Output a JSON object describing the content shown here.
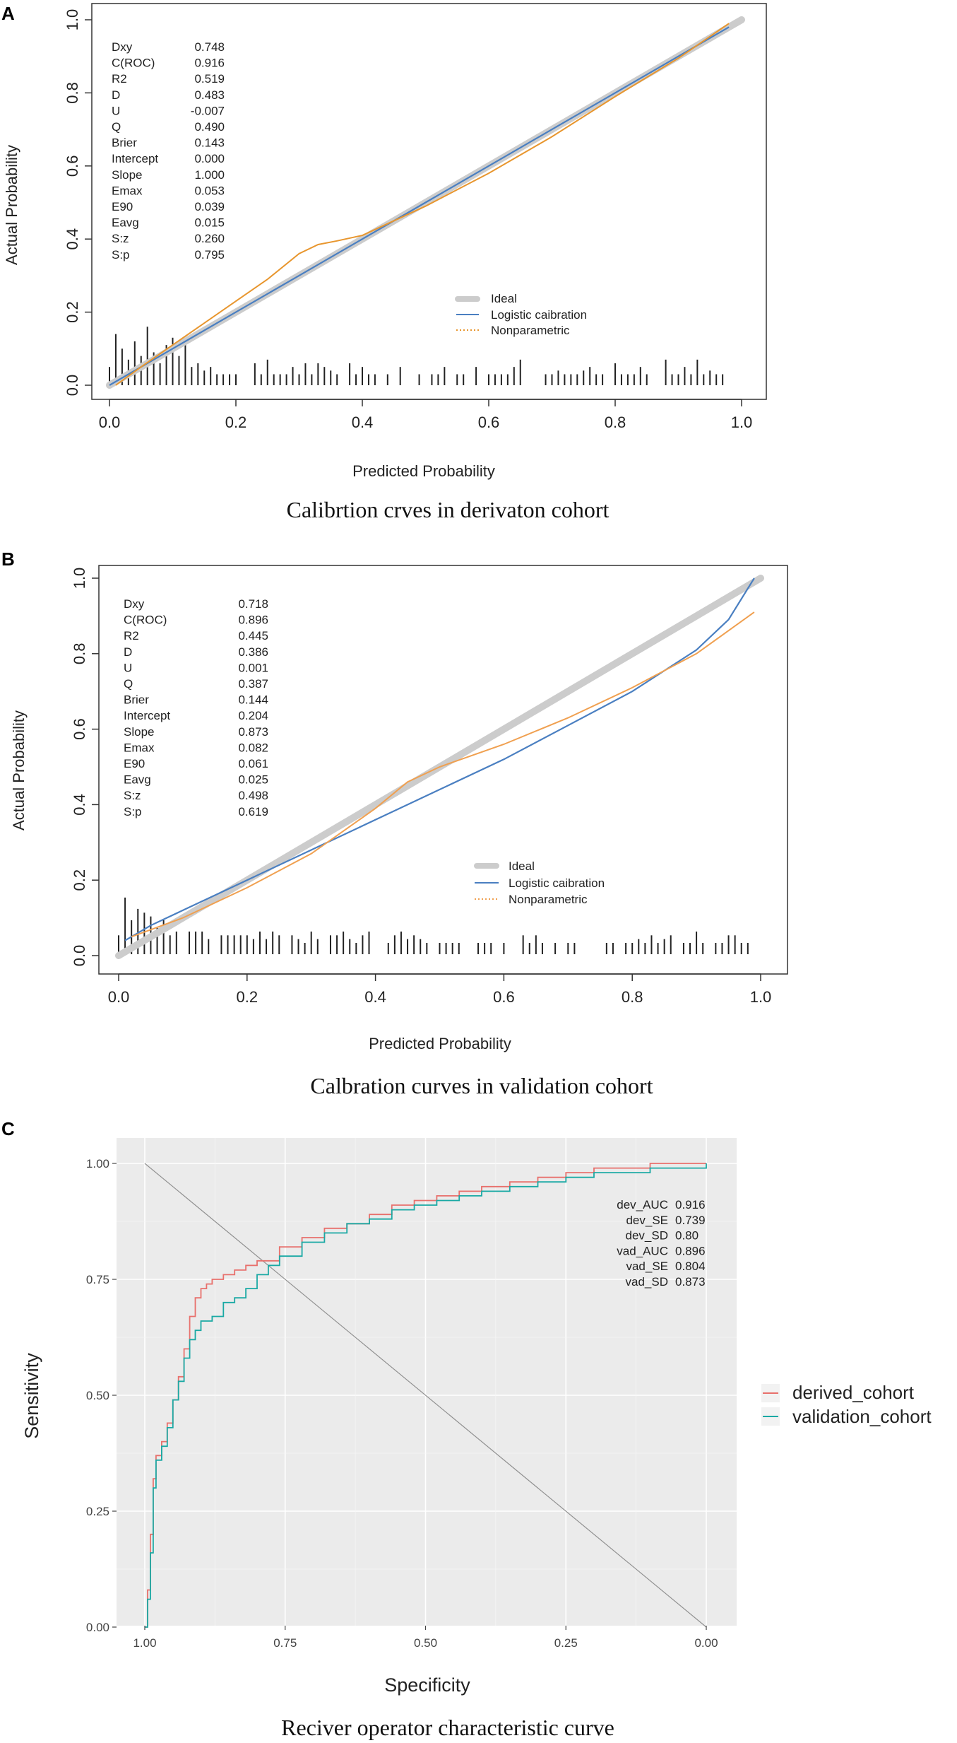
{
  "chart_data": [
    {
      "panel_label": "A",
      "type": "line",
      "caption": "Calibrtion crves in derivaton cohort",
      "xlabel": "Predicted Probability",
      "ylabel": "Actual Probability",
      "xlim": [
        0,
        1
      ],
      "ylim": [
        0,
        1
      ],
      "x_ticks": [
        "0.0",
        "0.2",
        "0.4",
        "0.6",
        "0.8",
        "1.0"
      ],
      "y_ticks": [
        "0.0",
        "0.2",
        "0.4",
        "0.6",
        "0.8",
        "1.0"
      ],
      "stats": [
        {
          "name": "Dxy",
          "value": "0.748"
        },
        {
          "name": "C(ROC)",
          "value": "0.916"
        },
        {
          "name": "R2",
          "value": "0.519"
        },
        {
          "name": "D",
          "value": "0.483"
        },
        {
          "name": "U",
          "value": "-0.007"
        },
        {
          "name": "Q",
          "value": "0.490"
        },
        {
          "name": "Brier",
          "value": "0.143"
        },
        {
          "name": "Intercept",
          "value": "0.000"
        },
        {
          "name": "Slope",
          "value": "1.000"
        },
        {
          "name": "Emax",
          "value": "0.053"
        },
        {
          "name": "E90",
          "value": "0.039"
        },
        {
          "name": "Eavg",
          "value": "0.015"
        },
        {
          "name": "S:z",
          "value": "0.260"
        },
        {
          "name": "S:p",
          "value": "0.795"
        }
      ],
      "legend": [
        "Ideal",
        "Logistic caibration",
        "Nonparametric"
      ],
      "series": [
        {
          "name": "Ideal",
          "color": "#cccccc",
          "x": [
            0,
            1
          ],
          "y": [
            0,
            1
          ]
        },
        {
          "name": "Logistic caibration",
          "color": "#4a7fc1",
          "x": [
            0,
            0.1,
            0.2,
            0.3,
            0.4,
            0.5,
            0.6,
            0.7,
            0.8,
            0.9,
            0.98
          ],
          "y": [
            0,
            0.1,
            0.2,
            0.3,
            0.4,
            0.5,
            0.6,
            0.7,
            0.8,
            0.9,
            0.98
          ]
        },
        {
          "name": "Nonparametric",
          "color": "#e8962e",
          "x": [
            0.01,
            0.05,
            0.1,
            0.15,
            0.2,
            0.25,
            0.3,
            0.33,
            0.36,
            0.4,
            0.5,
            0.6,
            0.7,
            0.8,
            0.9,
            0.98
          ],
          "y": [
            0.0,
            0.05,
            0.11,
            0.17,
            0.23,
            0.29,
            0.36,
            0.385,
            0.395,
            0.41,
            0.49,
            0.58,
            0.68,
            0.79,
            0.895,
            0.99
          ]
        }
      ],
      "rug_x": [
        0.0,
        0.01,
        0.02,
        0.03,
        0.04,
        0.05,
        0.06,
        0.07,
        0.08,
        0.09,
        0.1,
        0.11,
        0.12,
        0.13,
        0.14,
        0.15,
        0.16,
        0.17,
        0.18,
        0.19,
        0.2,
        0.23,
        0.24,
        0.25,
        0.26,
        0.27,
        0.28,
        0.29,
        0.3,
        0.31,
        0.32,
        0.33,
        0.34,
        0.35,
        0.36,
        0.38,
        0.39,
        0.4,
        0.41,
        0.42,
        0.44,
        0.46,
        0.49,
        0.51,
        0.52,
        0.53,
        0.55,
        0.56,
        0.58,
        0.6,
        0.61,
        0.62,
        0.63,
        0.64,
        0.65,
        0.69,
        0.7,
        0.71,
        0.72,
        0.73,
        0.74,
        0.75,
        0.76,
        0.77,
        0.78,
        0.8,
        0.81,
        0.82,
        0.83,
        0.84,
        0.85,
        0.88,
        0.89,
        0.9,
        0.91,
        0.92,
        0.93,
        0.94,
        0.95,
        0.96,
        0.97
      ],
      "rug_h": [
        0.05,
        0.14,
        0.1,
        0.07,
        0.12,
        0.08,
        0.16,
        0.09,
        0.06,
        0.11,
        0.13,
        0.08,
        0.12,
        0.05,
        0.06,
        0.04,
        0.05,
        0.03,
        0.03,
        0.03,
        0.03,
        0.06,
        0.03,
        0.07,
        0.03,
        0.03,
        0.03,
        0.05,
        0.03,
        0.06,
        0.03,
        0.06,
        0.05,
        0.04,
        0.03,
        0.06,
        0.03,
        0.05,
        0.03,
        0.03,
        0.03,
        0.05,
        0.03,
        0.03,
        0.03,
        0.05,
        0.03,
        0.03,
        0.05,
        0.03,
        0.03,
        0.03,
        0.03,
        0.05,
        0.07,
        0.03,
        0.03,
        0.04,
        0.03,
        0.03,
        0.03,
        0.04,
        0.05,
        0.03,
        0.03,
        0.06,
        0.03,
        0.03,
        0.03,
        0.05,
        0.03,
        0.07,
        0.03,
        0.03,
        0.05,
        0.03,
        0.07,
        0.03,
        0.04,
        0.03,
        0.03
      ]
    },
    {
      "panel_label": "B",
      "type": "line",
      "caption": "Calbration curves in validation cohort",
      "xlabel": "Predicted Probability",
      "ylabel": "Actual Probability",
      "xlim": [
        0,
        1
      ],
      "ylim": [
        0,
        1
      ],
      "x_ticks": [
        "0.0",
        "0.2",
        "0.4",
        "0.6",
        "0.8",
        "1.0"
      ],
      "y_ticks": [
        "0.0",
        "0.2",
        "0.4",
        "0.6",
        "0.8",
        "1.0"
      ],
      "stats": [
        {
          "name": "Dxy",
          "value": "0.718"
        },
        {
          "name": "C(ROC)",
          "value": "0.896"
        },
        {
          "name": "R2",
          "value": "0.445"
        },
        {
          "name": "D",
          "value": "0.386"
        },
        {
          "name": "U",
          "value": "0.001"
        },
        {
          "name": "Q",
          "value": "0.387"
        },
        {
          "name": "Brier",
          "value": "0.144"
        },
        {
          "name": "Intercept",
          "value": "0.204"
        },
        {
          "name": "Slope",
          "value": "0.873"
        },
        {
          "name": "Emax",
          "value": "0.082"
        },
        {
          "name": "E90",
          "value": "0.061"
        },
        {
          "name": "Eavg",
          "value": "0.025"
        },
        {
          "name": "S:z",
          "value": "0.498"
        },
        {
          "name": "S:p",
          "value": "0.619"
        }
      ],
      "legend": [
        "Ideal",
        "Logistic caibration",
        "Nonparametric"
      ],
      "series": [
        {
          "name": "Ideal",
          "color": "#cccccc",
          "x": [
            0,
            1
          ],
          "y": [
            0,
            1
          ]
        },
        {
          "name": "Logistic caibration",
          "color": "#4a7fc1",
          "x": [
            0.01,
            0.05,
            0.1,
            0.2,
            0.3,
            0.4,
            0.5,
            0.6,
            0.7,
            0.8,
            0.9,
            0.95,
            0.99
          ],
          "y": [
            0.04,
            0.08,
            0.12,
            0.2,
            0.28,
            0.36,
            0.44,
            0.52,
            0.61,
            0.7,
            0.81,
            0.89,
            1.0
          ]
        },
        {
          "name": "Nonparametric",
          "color": "#f0a050",
          "x": [
            0.02,
            0.1,
            0.2,
            0.3,
            0.35,
            0.4,
            0.45,
            0.5,
            0.6,
            0.7,
            0.8,
            0.9,
            0.99
          ],
          "y": [
            0.05,
            0.1,
            0.18,
            0.27,
            0.33,
            0.39,
            0.46,
            0.5,
            0.56,
            0.63,
            0.71,
            0.8,
            0.91
          ]
        }
      ],
      "rug_x": [
        0.0,
        0.01,
        0.02,
        0.03,
        0.04,
        0.05,
        0.06,
        0.07,
        0.08,
        0.09,
        0.11,
        0.12,
        0.13,
        0.14,
        0.16,
        0.17,
        0.18,
        0.19,
        0.2,
        0.21,
        0.22,
        0.23,
        0.24,
        0.25,
        0.27,
        0.28,
        0.29,
        0.3,
        0.31,
        0.33,
        0.34,
        0.35,
        0.36,
        0.37,
        0.38,
        0.39,
        0.42,
        0.43,
        0.44,
        0.45,
        0.46,
        0.47,
        0.48,
        0.5,
        0.51,
        0.52,
        0.53,
        0.56,
        0.57,
        0.58,
        0.6,
        0.63,
        0.64,
        0.65,
        0.66,
        0.68,
        0.7,
        0.71,
        0.76,
        0.77,
        0.79,
        0.8,
        0.81,
        0.82,
        0.83,
        0.84,
        0.85,
        0.86,
        0.88,
        0.89,
        0.9,
        0.91,
        0.93,
        0.94,
        0.95,
        0.96,
        0.97,
        0.98
      ],
      "rug_h": [
        0.05,
        0.15,
        0.09,
        0.12,
        0.11,
        0.1,
        0.07,
        0.09,
        0.05,
        0.06,
        0.06,
        0.06,
        0.06,
        0.04,
        0.05,
        0.05,
        0.05,
        0.05,
        0.05,
        0.04,
        0.06,
        0.04,
        0.06,
        0.05,
        0.05,
        0.04,
        0.03,
        0.06,
        0.04,
        0.05,
        0.05,
        0.06,
        0.04,
        0.03,
        0.05,
        0.06,
        0.03,
        0.05,
        0.06,
        0.04,
        0.05,
        0.04,
        0.03,
        0.03,
        0.03,
        0.03,
        0.03,
        0.03,
        0.03,
        0.03,
        0.03,
        0.05,
        0.03,
        0.05,
        0.03,
        0.03,
        0.03,
        0.03,
        0.03,
        0.03,
        0.03,
        0.03,
        0.04,
        0.03,
        0.05,
        0.03,
        0.04,
        0.05,
        0.03,
        0.03,
        0.06,
        0.03,
        0.03,
        0.03,
        0.05,
        0.05,
        0.03,
        0.03
      ]
    },
    {
      "panel_label": "C",
      "type": "line",
      "caption": "Reciver operator characteristic curve",
      "xlabel": "Specificity",
      "ylabel": "Sensitivity",
      "xlim": [
        1.0,
        0.0
      ],
      "ylim": [
        0,
        1
      ],
      "x_ticks": [
        "1.00",
        "0.75",
        "0.50",
        "0.25",
        "0.00"
      ],
      "y_ticks": [
        "0.00",
        "0.25",
        "0.50",
        "0.75",
        "1.00"
      ],
      "stats": [
        {
          "name": "dev_AUC",
          "value": "0.916"
        },
        {
          "name": "dev_SE",
          "value": "0.739"
        },
        {
          "name": "dev_SD",
          "value": "0.80"
        },
        {
          "name": "vad_AUC",
          "value": "0.896"
        },
        {
          "name": "vad_SE",
          "value": "0.804"
        },
        {
          "name": "vad_SD",
          "value": "0.873"
        }
      ],
      "legend": [
        "derived_cohort",
        "validation_cohort"
      ],
      "series": [
        {
          "name": "derived_cohort",
          "color": "#e8706c",
          "spec": [
            1.0,
            0.995,
            0.99,
            0.985,
            0.98,
            0.97,
            0.96,
            0.95,
            0.94,
            0.93,
            0.92,
            0.91,
            0.9,
            0.89,
            0.88,
            0.86,
            0.84,
            0.82,
            0.8,
            0.76,
            0.72,
            0.68,
            0.64,
            0.6,
            0.56,
            0.52,
            0.48,
            0.44,
            0.4,
            0.35,
            0.3,
            0.25,
            0.2,
            0.15,
            0.1,
            0.05,
            0.0
          ],
          "sens": [
            0.0,
            0.08,
            0.2,
            0.32,
            0.37,
            0.4,
            0.44,
            0.49,
            0.54,
            0.6,
            0.67,
            0.71,
            0.73,
            0.74,
            0.75,
            0.76,
            0.77,
            0.78,
            0.79,
            0.82,
            0.84,
            0.86,
            0.87,
            0.89,
            0.91,
            0.92,
            0.93,
            0.94,
            0.95,
            0.96,
            0.97,
            0.98,
            0.99,
            0.99,
            1.0,
            1.0,
            1.0
          ]
        },
        {
          "name": "validation_cohort",
          "color": "#1aa9a4",
          "spec": [
            1.0,
            0.995,
            0.99,
            0.985,
            0.98,
            0.97,
            0.96,
            0.95,
            0.94,
            0.93,
            0.92,
            0.91,
            0.9,
            0.88,
            0.86,
            0.84,
            0.82,
            0.8,
            0.78,
            0.76,
            0.72,
            0.68,
            0.64,
            0.6,
            0.56,
            0.52,
            0.48,
            0.44,
            0.4,
            0.35,
            0.3,
            0.25,
            0.2,
            0.15,
            0.1,
            0.05,
            0.0
          ],
          "sens": [
            0.0,
            0.06,
            0.16,
            0.3,
            0.36,
            0.39,
            0.43,
            0.49,
            0.53,
            0.58,
            0.62,
            0.64,
            0.66,
            0.67,
            0.7,
            0.71,
            0.73,
            0.76,
            0.78,
            0.8,
            0.83,
            0.85,
            0.87,
            0.88,
            0.9,
            0.91,
            0.92,
            0.93,
            0.94,
            0.95,
            0.96,
            0.97,
            0.98,
            0.98,
            0.99,
            0.99,
            1.0
          ]
        }
      ]
    }
  ]
}
